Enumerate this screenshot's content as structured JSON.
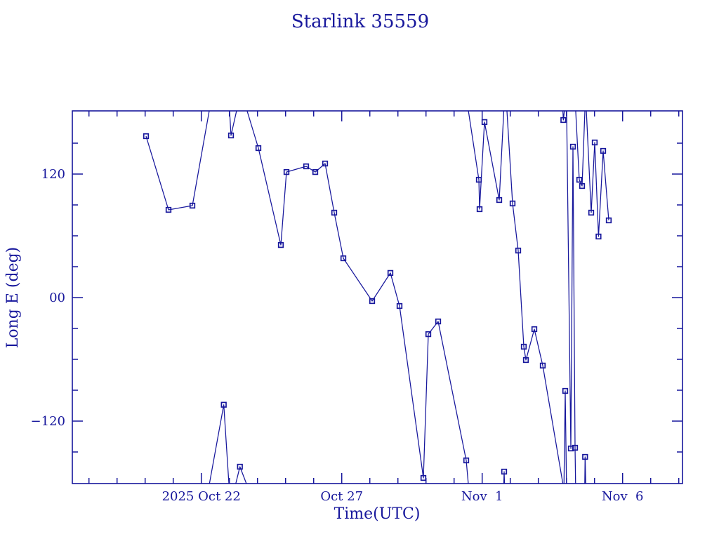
{
  "colors": {
    "ink": "#17179c",
    "background": "#ffffff"
  },
  "chart_data": {
    "type": "line",
    "title": "Starlink 35559",
    "xlabel": "Time(UTC)",
    "ylabel": "Long E (deg)",
    "x_unit": "days relative to 2025 Oct 22 00:00 UTC",
    "y_unit": "degrees east longitude",
    "grid": false,
    "legend": false,
    "marker": "open-square",
    "xlim": [
      -4.59,
      17.13
    ],
    "ylim": [
      -181.4,
      181.4
    ],
    "x_ticks_major": [
      {
        "day": 0,
        "label": "2025 Oct 22"
      },
      {
        "day": 5,
        "label": "Oct 27"
      },
      {
        "day": 10,
        "label": "Nov  1"
      },
      {
        "day": 15,
        "label": "Nov  6"
      }
    ],
    "x_ticks_minor_days": [
      -4,
      -3,
      -2,
      -1,
      1,
      2,
      3,
      4,
      6,
      7,
      8,
      9,
      11,
      12,
      13,
      14,
      16,
      17
    ],
    "y_ticks_major": [
      {
        "lon": 120,
        "label": "120"
      },
      {
        "lon": 0,
        "label": "00"
      },
      {
        "lon": -120,
        "label": "−120"
      }
    ],
    "y_ticks_minor_deg": [
      150,
      90,
      60,
      30,
      -30,
      -60,
      -90,
      -150
    ],
    "points": [
      [
        -1.9675,
        156.8
      ],
      [
        -1.1675,
        85.2
      ],
      [
        -0.3175,
        89.3
      ],
      [
        0.8,
        -104.1
      ],
      [
        1.0575,
        157.5
      ],
      [
        1.375,
        -164.3
      ],
      [
        2.0325,
        145.2
      ],
      [
        2.8325,
        51.1
      ],
      [
        3.0325,
        122.0
      ],
      [
        3.7325,
        127.5
      ],
      [
        4.0575,
        122.0
      ],
      [
        4.4075,
        130.2
      ],
      [
        4.7325,
        82.5
      ],
      [
        5.0575,
        38.2
      ],
      [
        6.0825,
        -3.4
      ],
      [
        6.7325,
        23.9
      ],
      [
        7.0575,
        -8.2
      ],
      [
        7.9075,
        -175.2
      ],
      [
        8.0825,
        -35.5
      ],
      [
        8.4325,
        -23.2
      ],
      [
        9.4325,
        -158.2
      ],
      [
        9.8825,
        114.5
      ],
      [
        9.9075,
        85.9
      ],
      [
        10.0825,
        170.5
      ],
      [
        10.6075,
        94.8
      ],
      [
        10.7825,
        -169.1
      ],
      [
        11.0825,
        91.4
      ],
      [
        11.2825,
        45.7
      ],
      [
        11.4825,
        -47.7
      ],
      [
        11.5575,
        -60.7
      ],
      [
        11.8575,
        -30.7
      ],
      [
        12.1575,
        -66.1
      ],
      [
        12.89,
        172.5
      ],
      [
        12.9575,
        -90.7
      ],
      [
        13.1575,
        -146.6
      ],
      [
        13.2325,
        146.6
      ],
      [
        13.3075,
        -145.9
      ],
      [
        13.4575,
        114.5
      ],
      [
        13.5575,
        108.4
      ],
      [
        13.665,
        -154.8
      ],
      [
        13.8825,
        82.5
      ],
      [
        14.0075,
        150.7
      ],
      [
        14.1425,
        59.3
      ],
      [
        14.3075,
        142.5
      ],
      [
        14.5075,
        75.0
      ]
    ],
    "strokes": [
      [
        [
          -1.9675,
          156.8
        ],
        [
          -1.1675,
          85.2
        ],
        [
          -0.3175,
          89.3
        ],
        [
          0.317,
          186.8
        ]
      ],
      [
        [
          0.24,
          -188.2
        ],
        [
          0.8,
          -104.1
        ],
        [
          1.0,
          -188.2
        ]
      ],
      [
        [
          0.995,
          186.8
        ],
        [
          1.0575,
          157.5
        ],
        [
          1.3,
          186.8
        ]
      ],
      [
        [
          1.16,
          -188.2
        ],
        [
          1.375,
          -164.3
        ],
        [
          1.71,
          -188.2
        ]
      ],
      [
        [
          1.57,
          186.8
        ],
        [
          2.0325,
          145.2
        ],
        [
          2.8325,
          51.1
        ],
        [
          3.0325,
          122.0
        ],
        [
          3.7325,
          127.5
        ],
        [
          4.0575,
          122.0
        ],
        [
          4.4075,
          130.2
        ],
        [
          4.7325,
          82.5
        ],
        [
          5.0575,
          38.2
        ],
        [
          6.0825,
          -3.4
        ],
        [
          6.7325,
          23.9
        ],
        [
          7.0575,
          -8.2
        ],
        [
          7.9075,
          -175.2
        ],
        [
          8.0825,
          -35.5
        ],
        [
          8.4325,
          -23.2
        ],
        [
          9.4325,
          -158.2
        ],
        [
          9.53,
          -188.2
        ]
      ],
      [
        [
          9.48,
          186.8
        ],
        [
          9.8825,
          114.5
        ],
        [
          9.9075,
          85.9
        ],
        [
          10.0825,
          170.5
        ],
        [
          10.6075,
          94.8
        ],
        [
          10.78,
          186.8
        ]
      ],
      [
        [
          10.76,
          -188.2
        ],
        [
          10.7825,
          -169.1
        ],
        [
          10.805,
          -188.2
        ]
      ],
      [
        [
          10.87,
          186.8
        ],
        [
          11.0825,
          91.4
        ],
        [
          11.2825,
          45.7
        ],
        [
          11.4825,
          -47.7
        ],
        [
          11.5575,
          -60.7
        ],
        [
          11.8575,
          -30.7
        ],
        [
          12.1575,
          -66.1
        ],
        [
          12.92,
          -188.2
        ]
      ],
      [
        [
          12.865,
          186.8
        ],
        [
          12.89,
          172.5
        ],
        [
          12.95,
          186.8
        ]
      ],
      [
        [
          12.91,
          -188.2
        ],
        [
          12.9575,
          -90.7
        ],
        [
          13.005,
          -188.2
        ]
      ],
      [
        [
          13.005,
          186.8
        ],
        [
          13.1575,
          -146.6
        ],
        [
          13.2325,
          146.6
        ],
        [
          13.3075,
          -145.9
        ],
        [
          13.33,
          -188.2
        ]
      ],
      [
        [
          13.32,
          186.8
        ],
        [
          13.4575,
          114.5
        ],
        [
          13.5575,
          108.4
        ],
        [
          13.665,
          186.8
        ]
      ],
      [
        [
          13.65,
          -188.2
        ],
        [
          13.665,
          -154.8
        ],
        [
          13.695,
          -188.2
        ]
      ],
      [
        [
          13.7,
          186.8
        ],
        [
          13.8825,
          82.5
        ],
        [
          14.0075,
          150.7
        ],
        [
          14.1425,
          59.3
        ],
        [
          14.3075,
          142.5
        ],
        [
          14.5075,
          75.0
        ]
      ]
    ]
  }
}
